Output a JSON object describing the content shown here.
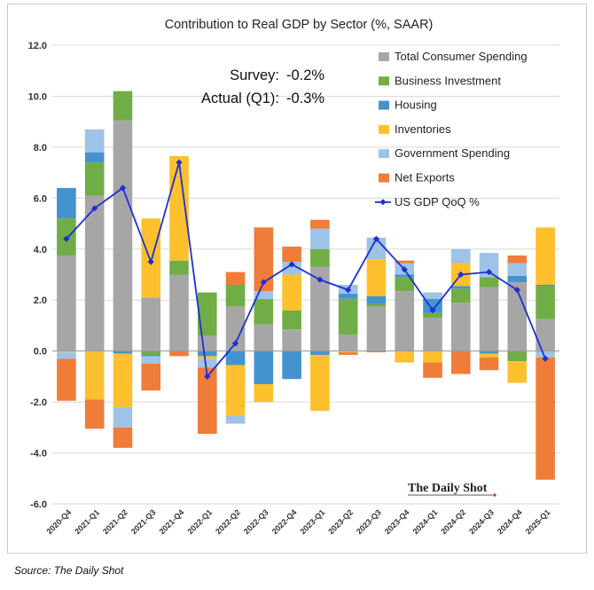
{
  "chart_data": {
    "type": "bar",
    "stacked": true,
    "title": "Contribution to Real GDP by Sector (%, SAAR)",
    "ylim": [
      -6,
      12
    ],
    "yticks": [
      -6,
      -4,
      -2,
      0,
      2,
      4,
      6,
      8,
      10,
      12
    ],
    "ytick_labels": [
      "-6.0",
      "-4.0",
      "-2.0",
      "0.0",
      "2.0",
      "4.0",
      "6.0",
      "8.0",
      "10.0",
      "12.0"
    ],
    "grid": true,
    "legend_position": "top-right",
    "categories": [
      "2020-Q4",
      "2021-Q1",
      "2021-Q2",
      "2021-Q3",
      "2021-Q4",
      "2022-Q1",
      "2022-Q2",
      "2022-Q3",
      "2022-Q4",
      "2023-Q1",
      "2023-Q2",
      "2023-Q3",
      "2023-Q4",
      "2024-Q1",
      "2024-Q2",
      "2024-Q3",
      "2024-Q4",
      "2025-Q1"
    ],
    "series": [
      {
        "name": "Total Consumer Spending",
        "kind": "bar",
        "color": "#a6a6a6",
        "values": [
          3.75,
          6.1,
          9.05,
          2.1,
          3.0,
          0.6,
          1.75,
          1.05,
          0.85,
          3.3,
          0.65,
          1.75,
          2.35,
          1.3,
          1.9,
          2.5,
          2.7,
          1.25
        ]
      },
      {
        "name": "Business Investment",
        "kind": "bar",
        "color": "#70ad47",
        "values": [
          1.45,
          1.3,
          1.15,
          -0.15,
          0.55,
          1.7,
          0.85,
          1.0,
          0.75,
          0.7,
          1.4,
          0.1,
          0.55,
          0.2,
          0.55,
          0.4,
          -0.4,
          1.3
        ]
      },
      {
        "name": "Housing",
        "kind": "bar",
        "color": "#4493cf",
        "values": [
          1.2,
          0.4,
          -0.1,
          -0.05,
          0.0,
          -0.2,
          -0.55,
          -1.3,
          -1.1,
          -0.15,
          0.2,
          0.3,
          0.1,
          0.55,
          0.1,
          -0.1,
          0.25,
          0.05
        ]
      },
      {
        "name": "Inventories",
        "kind": "bar",
        "color": "#ffc02e",
        "values": [
          -0.05,
          -1.9,
          -2.1,
          3.1,
          4.1,
          -0.1,
          -2.0,
          -0.7,
          1.4,
          -2.2,
          -0.05,
          1.45,
          -0.45,
          -0.45,
          0.9,
          -0.15,
          -0.85,
          2.25
        ]
      },
      {
        "name": "Government Spending",
        "kind": "bar",
        "color": "#9dc3e6",
        "values": [
          -0.25,
          0.9,
          -0.8,
          -0.3,
          0.0,
          -0.35,
          -0.3,
          0.3,
          0.5,
          0.8,
          0.35,
          0.85,
          0.45,
          0.25,
          0.55,
          0.95,
          0.5,
          -0.25
        ]
      },
      {
        "name": "Net Exports",
        "kind": "bar",
        "color": "#f07c3a",
        "values": [
          -1.65,
          -1.15,
          -0.8,
          -1.05,
          -0.2,
          -2.6,
          0.5,
          2.5,
          0.6,
          0.35,
          -0.1,
          -0.05,
          0.1,
          -0.6,
          -0.9,
          -0.5,
          0.3,
          -4.8
        ]
      },
      {
        "name": "US GDP QoQ %",
        "kind": "line",
        "color": "#1e2fd6",
        "values": [
          4.4,
          5.6,
          6.4,
          3.5,
          7.4,
          -1.0,
          0.3,
          2.7,
          3.4,
          2.8,
          2.4,
          4.4,
          3.2,
          1.6,
          3.0,
          3.1,
          2.4,
          -0.3
        ]
      }
    ],
    "annotations": [
      {
        "label": "Survey:",
        "value": "-0.2%"
      },
      {
        "label": "Actual (Q1):",
        "value": "-0.3%"
      }
    ],
    "watermark": "The Daily Shot"
  },
  "source_note": "Source: The Daily Shot"
}
